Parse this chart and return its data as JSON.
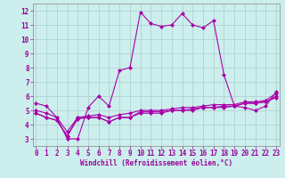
{
  "xlabel": "Windchill (Refroidissement éolien,°C)",
  "background_color": "#cceeed",
  "grid_color": "#aacccc",
  "line_color": "#aa00aa",
  "x_ticks": [
    0,
    1,
    2,
    3,
    4,
    5,
    6,
    7,
    8,
    9,
    10,
    11,
    12,
    13,
    14,
    15,
    16,
    17,
    18,
    19,
    20,
    21,
    22,
    23
  ],
  "y_ticks": [
    3,
    4,
    5,
    6,
    7,
    8,
    9,
    10,
    11,
    12
  ],
  "xlim": [
    -0.3,
    23.3
  ],
  "ylim": [
    2.5,
    12.5
  ],
  "lines": [
    {
      "x": [
        0,
        1,
        2,
        3,
        4,
        5,
        6,
        7,
        8,
        9,
        10,
        11,
        12,
        13,
        14,
        15,
        16,
        17,
        18,
        19,
        20,
        21,
        22,
        23
      ],
      "y": [
        5.5,
        5.3,
        4.5,
        3.0,
        3.0,
        5.2,
        6.0,
        5.3,
        7.8,
        8.0,
        11.9,
        11.1,
        10.9,
        11.0,
        11.8,
        11.0,
        10.8,
        11.3,
        7.5,
        5.3,
        5.2,
        5.0,
        5.3,
        6.3
      ]
    },
    {
      "x": [
        0,
        1,
        2,
        3,
        4,
        5,
        6,
        7,
        8,
        9,
        10,
        11,
        12,
        13,
        14,
        15,
        16,
        17,
        18,
        19,
        20,
        21,
        22,
        23
      ],
      "y": [
        4.8,
        4.5,
        4.3,
        3.2,
        4.5,
        4.5,
        4.5,
        4.2,
        4.5,
        4.5,
        4.8,
        4.8,
        4.8,
        5.0,
        5.0,
        5.0,
        5.2,
        5.2,
        5.3,
        5.3,
        5.5,
        5.5,
        5.6,
        6.0
      ]
    },
    {
      "x": [
        0,
        1,
        2,
        3,
        4,
        5,
        6,
        7,
        8,
        9,
        10,
        11,
        12,
        13,
        14,
        15,
        16,
        17,
        18,
        19,
        20,
        21,
        22,
        23
      ],
      "y": [
        4.8,
        4.5,
        4.3,
        3.2,
        4.4,
        4.5,
        4.5,
        4.2,
        4.5,
        4.5,
        4.9,
        4.9,
        4.9,
        5.0,
        5.0,
        5.1,
        5.2,
        5.2,
        5.2,
        5.3,
        5.5,
        5.5,
        5.6,
        5.9
      ]
    },
    {
      "x": [
        0,
        1,
        2,
        3,
        4,
        5,
        6,
        7,
        8,
        9,
        10,
        11,
        12,
        13,
        14,
        15,
        16,
        17,
        18,
        19,
        20,
        21,
        22,
        23
      ],
      "y": [
        5.0,
        4.8,
        4.5,
        3.5,
        4.5,
        4.6,
        4.7,
        4.5,
        4.7,
        4.8,
        5.0,
        5.0,
        5.0,
        5.1,
        5.2,
        5.2,
        5.3,
        5.4,
        5.4,
        5.4,
        5.6,
        5.6,
        5.7,
        6.2
      ]
    }
  ],
  "marker": "D",
  "markersize": 2.0,
  "linewidth": 0.8,
  "tick_fontsize": 5.5,
  "xlabel_fontsize": 5.5
}
